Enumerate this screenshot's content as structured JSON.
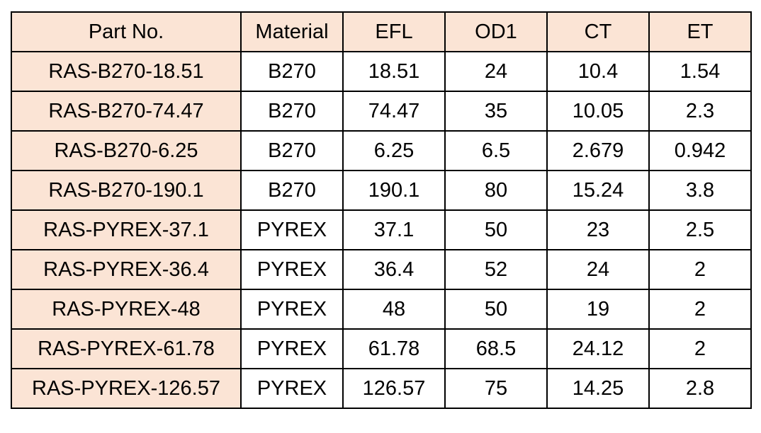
{
  "table": {
    "headers": [
      "Part No.",
      "Material",
      "EFL",
      "OD1",
      "CT",
      "ET"
    ],
    "rows": [
      [
        "RAS-B270-18.51",
        "B270",
        "18.51",
        "24",
        "10.4",
        "1.54"
      ],
      [
        "RAS-B270-74.47",
        "B270",
        "74.47",
        "35",
        "10.05",
        "2.3"
      ],
      [
        "RAS-B270-6.25",
        "B270",
        "6.25",
        "6.5",
        "2.679",
        "0.942"
      ],
      [
        "RAS-B270-190.1",
        "B270",
        "190.1",
        "80",
        "15.24",
        "3.8"
      ],
      [
        "RAS-PYREX-37.1",
        "PYREX",
        "37.1",
        "50",
        "23",
        "2.5"
      ],
      [
        "RAS-PYREX-36.4",
        "PYREX",
        "36.4",
        "52",
        "24",
        "2"
      ],
      [
        "RAS-PYREX-48",
        "PYREX",
        "48",
        "50",
        "19",
        "2"
      ],
      [
        "RAS-PYREX-61.78",
        "PYREX",
        "61.78",
        "68.5",
        "24.12",
        "2"
      ],
      [
        "RAS-PYREX-126.57",
        "PYREX",
        "126.57",
        "75",
        "14.25",
        "2.8"
      ]
    ]
  },
  "colors": {
    "highlight": "#fbe4d5",
    "border": "#000000",
    "text": "#000000",
    "background": "#ffffff"
  }
}
